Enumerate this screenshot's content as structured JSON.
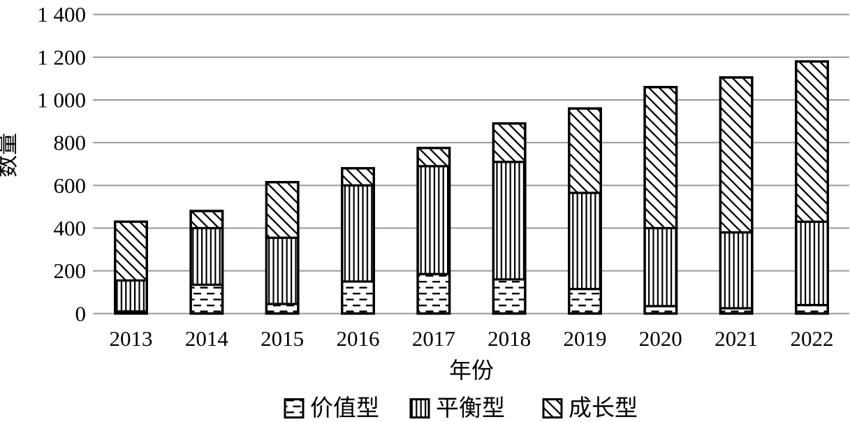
{
  "chart_data": {
    "type": "bar",
    "stacked": true,
    "title": "",
    "xlabel": "年份",
    "ylabel": "数量",
    "categories": [
      "2013",
      "2014",
      "2015",
      "2016",
      "2017",
      "2018",
      "2019",
      "2020",
      "2021",
      "2022"
    ],
    "series": [
      {
        "name": "价值型",
        "pattern": "horizontal-dashes",
        "values": [
          10,
          135,
          45,
          150,
          185,
          160,
          115,
          35,
          25,
          40
        ]
      },
      {
        "name": "平衡型",
        "pattern": "vertical-lines",
        "values": [
          145,
          265,
          310,
          450,
          505,
          550,
          450,
          365,
          355,
          390
        ]
      },
      {
        "name": "成长型",
        "pattern": "diagonal-lines",
        "values": [
          275,
          80,
          260,
          80,
          85,
          180,
          395,
          660,
          725,
          750
        ]
      }
    ],
    "totals": [
      430,
      480,
      615,
      680,
      775,
      890,
      960,
      1060,
      1105,
      1180
    ],
    "ylim": [
      0,
      1400
    ],
    "ytick_interval": 200,
    "ytick_labels": [
      "0",
      "200",
      "400",
      "600",
      "800",
      "1 000",
      "1 200",
      "1 400"
    ],
    "grid": true,
    "legend_position": "bottom",
    "legend": [
      "价值型",
      "平衡型",
      "成长型"
    ],
    "colors": {
      "background": "#ffffff",
      "bar_fill": "#ffffff",
      "bar_stroke": "#000000",
      "gridline": "#999999",
      "text": "#000000"
    }
  }
}
